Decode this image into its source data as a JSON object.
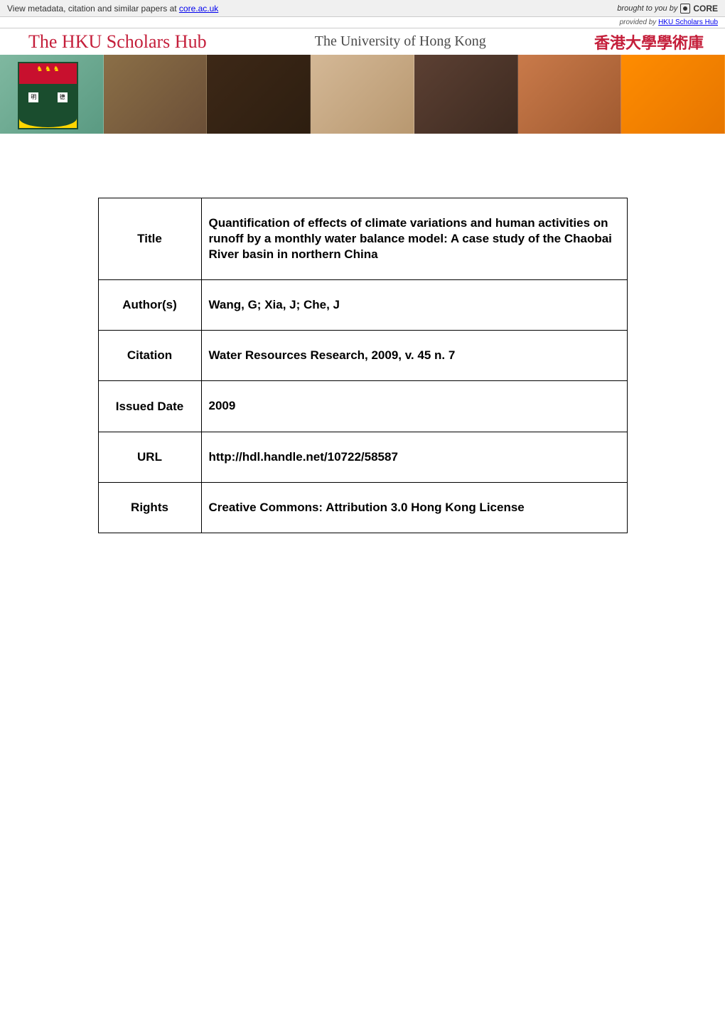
{
  "topbar": {
    "view_text": "View metadata, citation and similar papers at ",
    "core_link": "core.ac.uk",
    "brought_text": "brought to you by",
    "core_label": "CORE"
  },
  "provided": {
    "text": "provided by ",
    "source": "HKU Scholars Hub"
  },
  "banner": {
    "hub_title": "The HKU Scholars Hub",
    "univ_title": "The University of Hong Kong",
    "chinese_title": "香港大學學術庫"
  },
  "metadata": {
    "rows": [
      {
        "label": "Title",
        "value": "Quantification of effects of climate variations and human activities on runoff by a monthly water balance model: A case study of the Chaobai River basin in northern China"
      },
      {
        "label": "Author(s)",
        "value": "Wang, G; Xia, J; Che, J"
      },
      {
        "label": "Citation",
        "value": "Water Resources Research, 2009, v. 45 n. 7"
      },
      {
        "label": "Issued Date",
        "value": "2009"
      },
      {
        "label": "URL",
        "value": "http://hdl.handle.net/10722/58587"
      },
      {
        "label": "Rights",
        "value": "Creative Commons: Attribution 3.0 Hong Kong License"
      }
    ]
  }
}
